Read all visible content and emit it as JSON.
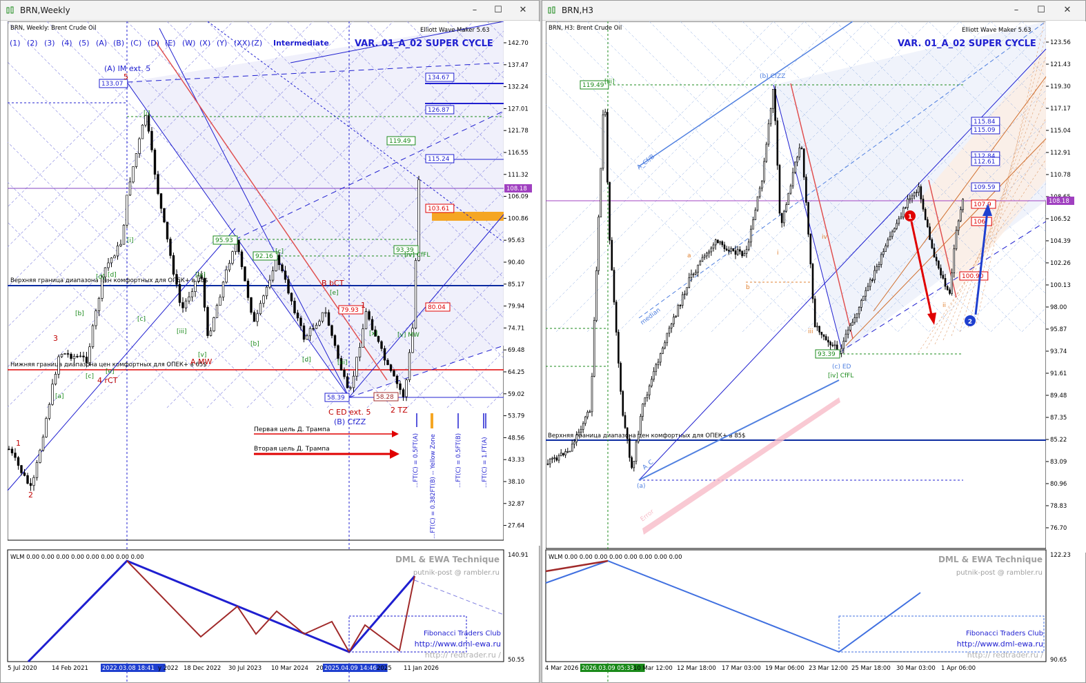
{
  "left": {
    "window_title": "BRN,Weekly",
    "chart_header": "BRN, Weekly:  Brent Crude Oil",
    "wave_buttons": [
      "(1)",
      "(2)",
      "(3)",
      "(4)",
      "(5)",
      "(A)",
      "(B)",
      "(C)",
      "(D)",
      "(E)",
      "(W)",
      "(X)",
      "(Y)",
      "(XX)",
      "(Z)"
    ],
    "degree": "Intermediate",
    "plugin": "Elliott Wave Maker 5.63",
    "variant": "VAR. 01_A_02 SUPER CYCLE",
    "opec_upper_label": "Верхняя граница диапазона цен комфортных для ОПЕК+ в 85$",
    "opec_lower_label": "Нижняя граница диапазона цен комфортных для ОПЕК+ в 65$",
    "trump_target_1": "Первая цель Д. Трампа",
    "trump_target_2": "Вторая цель Д. Трампа",
    "price_axis": [
      "142.70",
      "137.47",
      "132.24",
      "127.01",
      "121.78",
      "116.55",
      "111.32",
      "106.09",
      "100.86",
      "95.63",
      "90.40",
      "85.17",
      "79.94",
      "74.71",
      "69.48",
      "64.25",
      "59.02",
      "53.79",
      "48.56",
      "43.33",
      "38.10",
      "32.87",
      "27.64"
    ],
    "current_price": "108.18",
    "right_boxes": [
      "134.67",
      "126.87",
      "115.24",
      "103.61",
      "80.04"
    ],
    "boxes": [
      "133.07",
      "119.49",
      "95.93",
      "92.16",
      "93.39",
      "79.93",
      "58.39",
      "58.28"
    ],
    "labels": [
      "(A) IM ext. 5",
      "C ED ext. 5",
      "(B) CfZZ",
      "B bCT",
      "A MW",
      "4 rCT",
      "2 TZ",
      "[iv] CfFL",
      "[v] MW",
      "1",
      "2",
      "3",
      "4",
      "5",
      "[i]",
      "[ii]",
      "[iii]",
      "[iv]",
      "[v]",
      "[a]",
      "[b]",
      "[c]",
      "[d]",
      "[e]",
      "[x]",
      "[iii]"
    ],
    "vertical_labels": [
      "...FT(C) = 0.5FT(A)",
      "...FT(C) = 0.382FT(B) -- Yellow Zone",
      "...FT(C) = 0.5FT(B)",
      "...FT(C) = 1.FT(A)"
    ],
    "time_axis": [
      "5 Jul 2020",
      "14 Feb 2021",
      "2022.03.08 18:41",
      "y 2022",
      "18 Dec 2022",
      "30 Jul 2023",
      "10 Mar 2024",
      "20",
      "2025.04.09 14:46",
      "2025",
      "11 Jan 2026"
    ],
    "indicator": {
      "header": "WLM 0.00 0.00 0.00 0.00 0.00 0.00 0.00 0.00",
      "axis_top": "140.91",
      "axis_bottom": "50.55",
      "watermark_1": "DML & EWA Technique",
      "watermark_2": "putnik-post @ rambler.ru",
      "footer_1": "Fibonacci    Traders    Club",
      "footer_2": "http://www.dml-ewa.ru",
      "footer_3": "http:// redtrader.ru /"
    }
  },
  "right": {
    "window_title": "BRN,H3",
    "chart_header": "BRN, H3:  Brent Crude Oil",
    "plugin": "Elliott Wave Maker 5.63",
    "variant": "VAR. 01_A_02 SUPER CYCLE",
    "opec_upper_label": "Верхняя граница диапазона цен комфортных для ОПЕК+ в 85$",
    "price_axis": [
      "123.56",
      "121.43",
      "119.30",
      "117.17",
      "115.04",
      "112.91",
      "110.78",
      "108.65",
      "106.52",
      "104.39",
      "102.26",
      "100.13",
      "98.00",
      "95.87",
      "93.74",
      "91.61",
      "89.48",
      "87.35",
      "85.22",
      "83.09",
      "80.96",
      "78.83",
      "76.70"
    ],
    "current_price": "108.18",
    "right_boxes": [
      "115.84",
      "115.09",
      "112.84",
      "112.61",
      "109.59",
      "107.9",
      "106.",
      "100.90"
    ],
    "boxes": [
      "119.49",
      "93.39"
    ],
    "labels": [
      "(b) CfZZ",
      "(c) ED",
      "[iv] CfFL",
      "(a)",
      "[iii]",
      "a",
      "b",
      "i",
      "ii",
      "iii",
      "iv",
      "median",
      "A_Cf/B",
      "A_C",
      "Error"
    ],
    "time_axis": [
      "4 Mar 2026",
      "2026.03.09 05:33",
      "10 Mar 12:00",
      "12 Mar 18:00",
      "17 Mar 03:00",
      "19 Mar 06:00",
      "23 Mar 12:00",
      "25 Mar 18:00",
      "30 Mar 03:00",
      "1 Apr 06:00"
    ],
    "indicator": {
      "header": "WLM 0.00 0.00 0.00 0.00 0.00 0.00 0.00 0.00",
      "axis_top": "122.23",
      "axis_bottom": "90.65",
      "watermark_1": "DML & EWA Technique",
      "watermark_2": "putnik-post @ rambler.ru",
      "footer_1": "Fibonacci    Traders    Club",
      "footer_2": "http://www.dml-ewa.ru",
      "footer_3": "http:// redtrader.ru /"
    }
  },
  "colors": {
    "blue": "#1f1fd0",
    "red": "#e00000",
    "green": "#1a8a1a",
    "magenta": "#a040c0",
    "orange": "#f5a623",
    "brown": "#a02a2a",
    "navy": "#0a2a8a"
  },
  "chart_data": [
    {
      "type": "line",
      "title": "BRN, Weekly:  Brent Crude Oil",
      "x": [
        "5 Jul 2020",
        "14 Feb 2021",
        "2022.03.08",
        "18 Dec 2022",
        "30 Jul 2023",
        "10 Mar 2024",
        "2025.04.09",
        "11 Jan 2026"
      ],
      "series": [
        {
          "name": "BRN",
          "values": [
            40,
            63,
            133.07,
            82,
            95.93,
            83,
            58.39,
            108.18
          ]
        }
      ],
      "ylim": [
        27.64,
        142.7
      ]
    },
    {
      "type": "line",
      "title": "BRN, H3:  Brent Crude Oil",
      "x": [
        "4 Mar 2026",
        "2026.03.09",
        "10 Mar 12:00",
        "12 Mar 18:00",
        "17 Mar 03:00",
        "19 Mar 06:00",
        "23 Mar 12:00",
        "25 Mar 18:00",
        "30 Mar 03:00",
        "1 Apr 06:00"
      ],
      "series": [
        {
          "name": "BRN",
          "values": [
            82,
            119.49,
            90,
            96,
            103,
            119.3,
            93.39,
            101,
            107,
            108.18
          ]
        }
      ],
      "ylim": [
        76.7,
        123.56
      ]
    }
  ]
}
